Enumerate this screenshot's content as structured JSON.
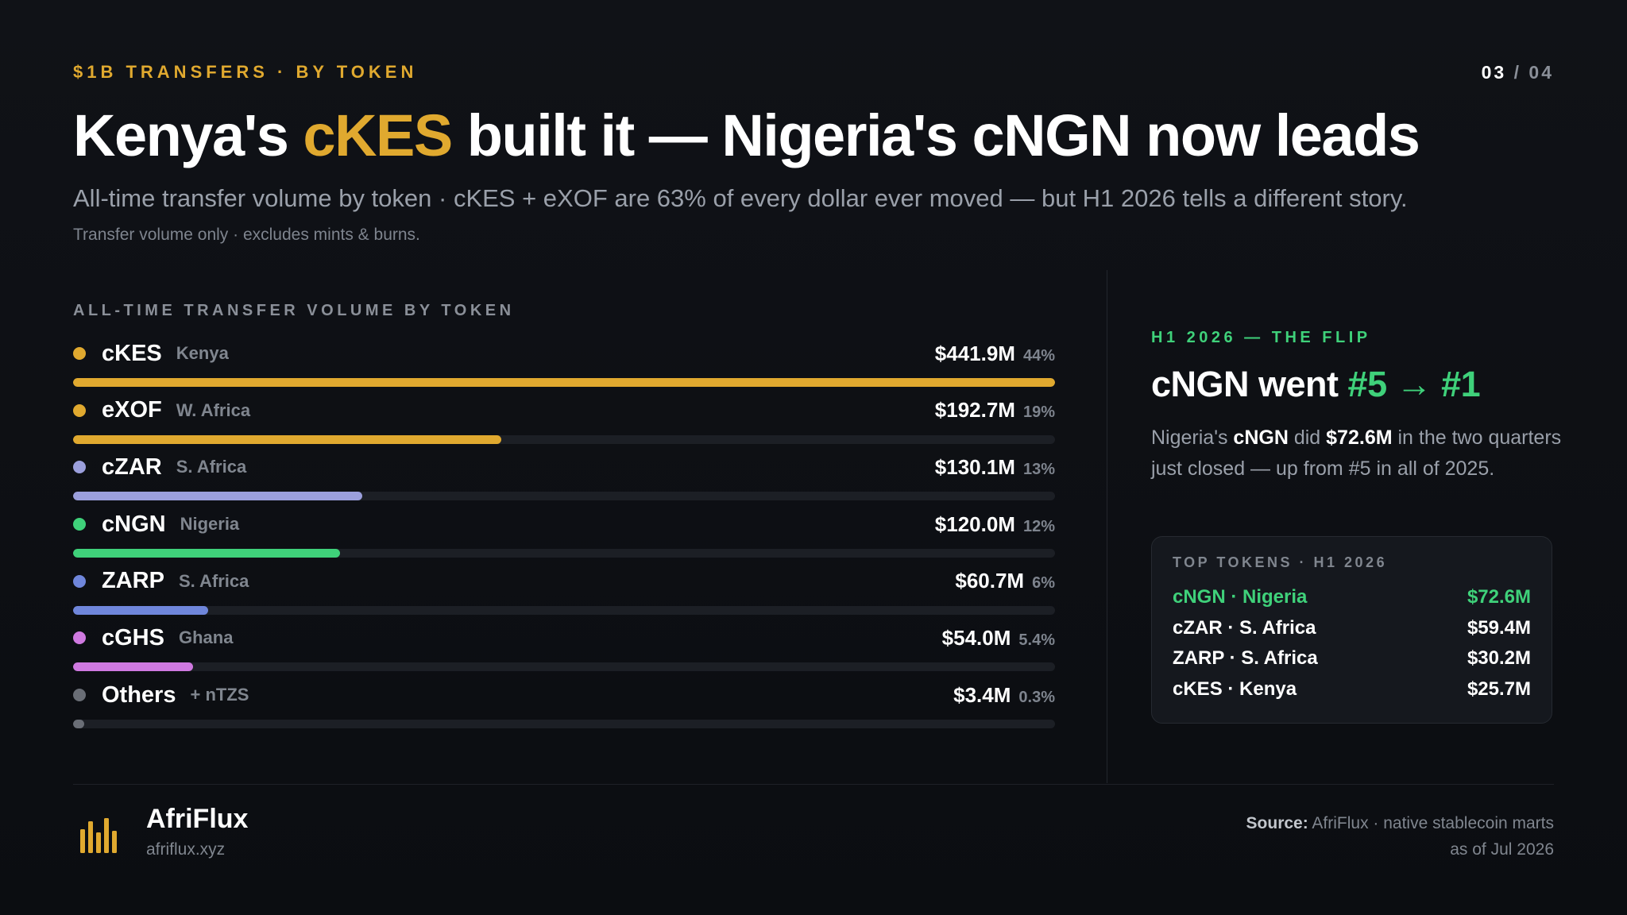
{
  "header": {
    "eyebrow": "$1B TRANSFERS · BY TOKEN",
    "page_current": "03",
    "page_sep": "/",
    "page_total": "04",
    "title_pre": "Kenya's ",
    "title_highlight": "cKES",
    "title_post": " built it — Nigeria's cNGN now leads",
    "subtitle": "All-time transfer volume by token · cKES + eXOF are 63% of every dollar ever moved — but H1 2026 tells a different story.",
    "note": "Transfer volume only · excludes mints & burns."
  },
  "chart_data": {
    "type": "bar",
    "orientation": "horizontal",
    "title": "ALL-TIME TRANSFER VOLUME BY TOKEN",
    "xlim": [
      0,
      441.9
    ],
    "categories": [
      "cKES",
      "eXOF",
      "cZAR",
      "cNGN",
      "ZARP",
      "cGHS",
      "Others"
    ],
    "regions": [
      "Kenya",
      "W. Africa",
      "S. Africa",
      "Nigeria",
      "S. Africa",
      "Ghana",
      "+ nTZS"
    ],
    "values": [
      441.9,
      192.7,
      130.1,
      120.0,
      60.7,
      54.0,
      3.4
    ],
    "value_labels": [
      "$441.9M",
      "$192.7M",
      "$130.1M",
      "$120.0M",
      "$60.7M",
      "$54.0M",
      "$3.4M"
    ],
    "pct_labels": [
      "44%",
      "19%",
      "13%",
      "12%",
      "6%",
      "5.4%",
      "0.3%"
    ],
    "colors": [
      "#e0a92f",
      "#e0a92f",
      "#9b9fdc",
      "#3fd17a",
      "#6f86db",
      "#cf79e0",
      "#6a6e76"
    ]
  },
  "flip": {
    "eyebrow": "H1 2026 — THE FLIP",
    "title_pre": "cNGN went ",
    "title_highlight": "#5 → #1",
    "body_1": "Nigeria's ",
    "body_token": "cNGN",
    "body_2": " did ",
    "body_amount": "$72.6M",
    "body_3": " in the two quarters just closed — up from #5 in all of 2025."
  },
  "top_tokens": {
    "heading": "TOP TOKENS · H1 2026",
    "rows": [
      {
        "label": "cNGN · Nigeria",
        "value": "$72.6M"
      },
      {
        "label": "cZAR · S. Africa",
        "value": "$59.4M"
      },
      {
        "label": "ZARP · S. Africa",
        "value": "$30.2M"
      },
      {
        "label": "cKES · Kenya",
        "value": "$25.7M"
      }
    ]
  },
  "footer": {
    "brand": "AfriFlux",
    "url": "afriflux.xyz",
    "logo_icon": "bar-chart-logo-icon",
    "source_label": "Source:",
    "source_text": " AfriFlux · native stablecoin marts",
    "source_date": "as of Jul 2026"
  },
  "colors": {
    "accent_gold": "#e0a92f",
    "accent_green": "#3fd17a",
    "background": "#0d0f13"
  }
}
